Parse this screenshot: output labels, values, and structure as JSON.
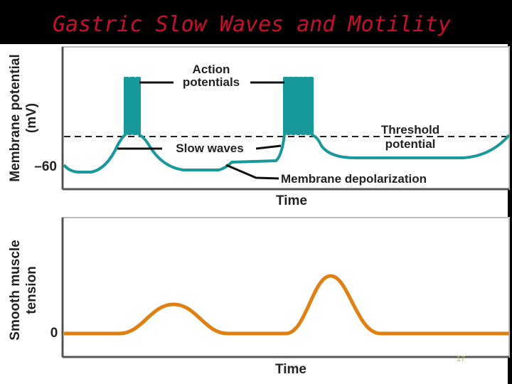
{
  "title": "Gastric Slow Waves and Motility",
  "membrane_panel": {
    "y_label_lines": [
      "Membrane potential",
      "(mV)"
    ],
    "tick": "–60",
    "action_potentials_lines": [
      "Action",
      "potentials"
    ],
    "slow_waves": "Slow waves",
    "threshold_lines": [
      "Threshold",
      "potential"
    ],
    "membrane_depolarization": "Membrane depolarization",
    "x_label": "Time"
  },
  "tension_panel": {
    "y_label_lines": [
      "Smooth muscle",
      "tension"
    ],
    "tick": "0",
    "x_label": "Time"
  },
  "slide_number": "17"
}
